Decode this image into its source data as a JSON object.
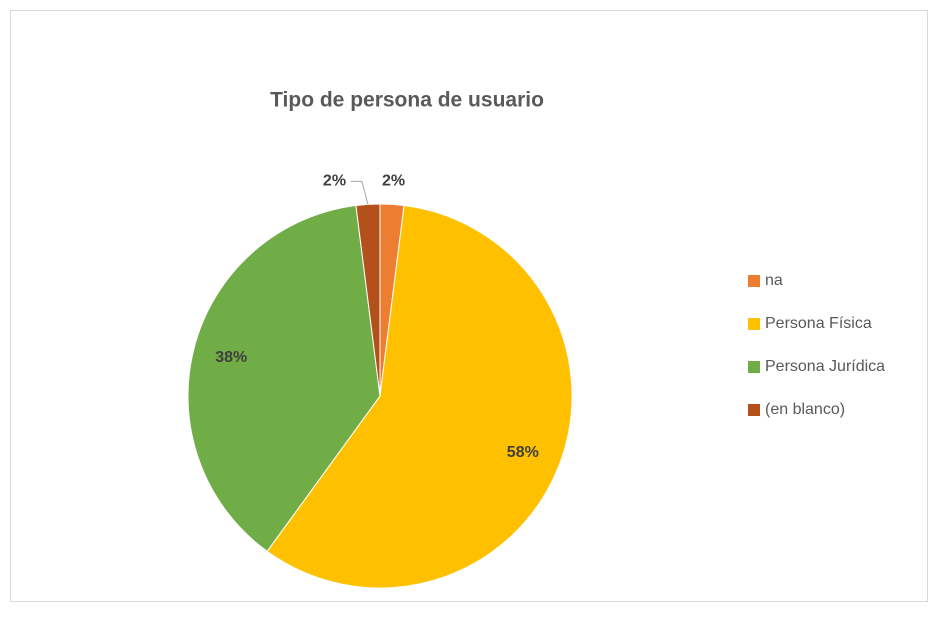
{
  "chart_data": {
    "type": "pie",
    "title": "Tipo de persona de usuario",
    "categories": [
      "na",
      "Persona Física",
      "Persona Jurídica",
      "(en blanco)"
    ],
    "values": [
      2,
      58,
      38,
      2
    ],
    "value_labels": [
      "2%",
      "58%",
      "38%",
      "2%"
    ],
    "colors": [
      "#ed7d31",
      "#ffc000",
      "#70ad47",
      "#b4501a"
    ],
    "legend": "right"
  }
}
